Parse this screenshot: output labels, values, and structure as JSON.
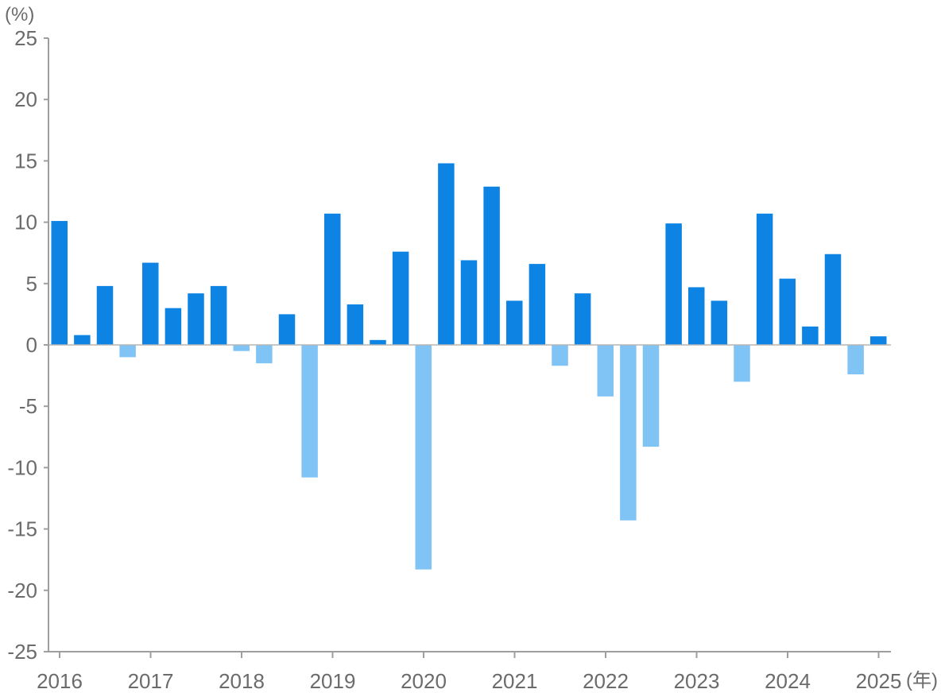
{
  "chart_data": {
    "type": "bar",
    "title": "",
    "ylabel": "(%)",
    "xlabel": "(年)",
    "ylim": [
      -25,
      25
    ],
    "yticks": [
      25,
      20,
      15,
      10,
      5,
      0,
      -5,
      -10,
      -15,
      -20,
      -25
    ],
    "xlim": [
      2016,
      2025.125
    ],
    "xticks": [
      2016,
      2017,
      2018,
      2019,
      2020,
      2021,
      2022,
      2023,
      2024,
      2025
    ],
    "grid": false,
    "legend": "none",
    "colors": {
      "positive": "#0d84e3",
      "negative": "#80c3f5",
      "axis": "#9e9e9e",
      "text": "#6b6b6b"
    },
    "series": [
      {
        "x": [
          "2016Q1",
          "2016Q2",
          "2016Q3",
          "2016Q4",
          "2017Q1",
          "2017Q2",
          "2017Q3",
          "2017Q4",
          "2018Q1",
          "2018Q2",
          "2018Q3",
          "2018Q4",
          "2019Q1",
          "2019Q2",
          "2019Q3",
          "2019Q4",
          "2020Q1",
          "2020Q2",
          "2020Q3",
          "2020Q4",
          "2021Q1",
          "2021Q2",
          "2021Q3",
          "2021Q4",
          "2022Q1",
          "2022Q2",
          "2022Q3",
          "2022Q4",
          "2023Q1",
          "2023Q2",
          "2023Q3",
          "2023Q4",
          "2024Q1",
          "2024Q2",
          "2024Q3",
          "2024Q4",
          "2025Q1"
        ],
        "values": [
          10.1,
          0.8,
          4.8,
          -1.0,
          6.7,
          3.0,
          4.2,
          4.8,
          -0.5,
          -1.5,
          2.5,
          -10.8,
          10.7,
          3.3,
          0.4,
          7.6,
          -18.3,
          14.8,
          6.9,
          12.9,
          3.6,
          6.6,
          -1.7,
          4.2,
          -4.2,
          -14.3,
          -8.3,
          9.9,
          4.7,
          3.6,
          -3.0,
          10.7,
          5.4,
          1.5,
          7.4,
          -2.4,
          0.7
        ]
      }
    ]
  }
}
